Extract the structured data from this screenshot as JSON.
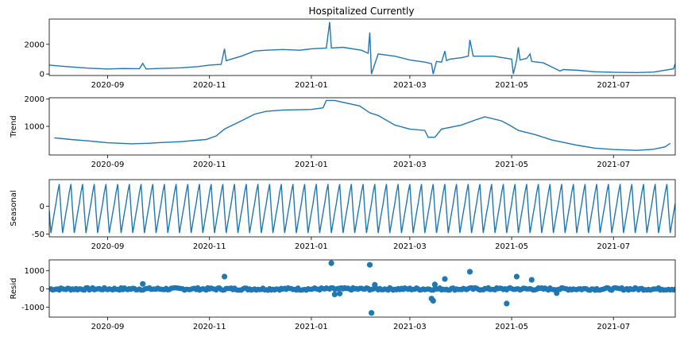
{
  "title": "Hospitalized Currently",
  "colors": {
    "line": "#1f77b4",
    "axis": "#000000",
    "zero_line": "#000000"
  },
  "x_tick_labels": [
    "2020-09",
    "2020-11",
    "2021-01",
    "2021-03",
    "2021-05",
    "2021-07"
  ],
  "chart_data": [
    {
      "type": "line",
      "panel": "observed",
      "ylabel": "",
      "xlim": [
        "2020-07-28",
        "2021-08-07"
      ],
      "ylim": [
        -100,
        3700
      ],
      "yticks": [
        0,
        2000
      ],
      "x": [
        "2020-07-28",
        "2020-08-01",
        "2020-08-10",
        "2020-08-20",
        "2020-09-01",
        "2020-09-10",
        "2020-09-20",
        "2020-09-22",
        "2020-09-24",
        "2020-10-01",
        "2020-10-15",
        "2020-10-25",
        "2020-11-01",
        "2020-11-08",
        "2020-11-10",
        "2020-11-11",
        "2020-11-20",
        "2020-11-28",
        "2020-12-05",
        "2020-12-15",
        "2020-12-25",
        "2021-01-01",
        "2021-01-10",
        "2021-01-12",
        "2021-01-13",
        "2021-01-20",
        "2021-01-31",
        "2021-02-04",
        "2021-02-05",
        "2021-02-06",
        "2021-02-10",
        "2021-02-20",
        "2021-03-01",
        "2021-03-10",
        "2021-03-14",
        "2021-03-15",
        "2021-03-17",
        "2021-03-20",
        "2021-03-22",
        "2021-03-23",
        "2021-03-25",
        "2021-04-01",
        "2021-04-05",
        "2021-04-06",
        "2021-04-08",
        "2021-04-20",
        "2021-05-01",
        "2021-05-02",
        "2021-05-04",
        "2021-05-05",
        "2021-05-06",
        "2021-05-10",
        "2021-05-12",
        "2021-05-13",
        "2021-05-20",
        "2021-05-30",
        "2021-06-01",
        "2021-06-10",
        "2021-06-20",
        "2021-07-01",
        "2021-07-15",
        "2021-07-25",
        "2021-08-06",
        "2021-08-07"
      ],
      "y": [
        600,
        560,
        480,
        400,
        340,
        370,
        360,
        720,
        340,
        370,
        420,
        500,
        600,
        650,
        1700,
        900,
        1200,
        1550,
        1600,
        1650,
        1600,
        1700,
        1750,
        3500,
        1750,
        1800,
        1600,
        1400,
        2800,
        0,
        1350,
        1200,
        950,
        800,
        700,
        0,
        850,
        800,
        1550,
        900,
        1000,
        1100,
        1200,
        2300,
        1200,
        1200,
        1000,
        0,
        950,
        1800,
        950,
        1050,
        1350,
        850,
        750,
        200,
        300,
        250,
        150,
        120,
        100,
        130,
        350,
        700
      ]
    },
    {
      "type": "line",
      "panel": "trend",
      "ylabel": "Trend",
      "xlim": [
        "2020-07-28",
        "2021-08-07"
      ],
      "ylim": [
        -50,
        2050
      ],
      "yticks": [
        1000,
        2000
      ],
      "x": [
        "2020-07-31",
        "2020-08-10",
        "2020-08-20",
        "2020-09-01",
        "2020-09-15",
        "2020-09-25",
        "2020-10-01",
        "2020-10-15",
        "2020-10-30",
        "2020-11-05",
        "2020-11-10",
        "2020-11-20",
        "2020-11-28",
        "2020-12-05",
        "2020-12-15",
        "2021-01-01",
        "2021-01-08",
        "2021-01-10",
        "2021-01-15",
        "2021-01-30",
        "2021-02-05",
        "2021-02-10",
        "2021-02-20",
        "2021-03-01",
        "2021-03-10",
        "2021-03-12",
        "2021-03-16",
        "2021-03-20",
        "2021-04-01",
        "2021-04-10",
        "2021-04-15",
        "2021-04-25",
        "2021-05-01",
        "2021-05-05",
        "2021-05-15",
        "2021-05-25",
        "2021-06-10",
        "2021-06-20",
        "2021-07-01",
        "2021-07-15",
        "2021-07-25",
        "2021-08-01",
        "2021-08-04"
      ],
      "y": [
        580,
        520,
        470,
        400,
        360,
        380,
        400,
        440,
        520,
        650,
        900,
        1200,
        1450,
        1550,
        1600,
        1620,
        1680,
        1950,
        1950,
        1750,
        1500,
        1400,
        1050,
        900,
        850,
        600,
        600,
        900,
        1050,
        1250,
        1350,
        1200,
        1000,
        850,
        700,
        500,
        300,
        200,
        150,
        120,
        160,
        250,
        380
      ]
    },
    {
      "type": "line",
      "panel": "seasonal",
      "ylabel": "Seasonal",
      "xlim": [
        "2020-07-28",
        "2021-08-07"
      ],
      "ylim": [
        -55,
        48
      ],
      "yticks": [
        -50,
        0
      ],
      "period_days": 7,
      "weekly_pattern": [
        -8,
        -48,
        -30,
        -12,
        5,
        25,
        40
      ],
      "start": "2020-07-28",
      "end": "2021-08-07"
    },
    {
      "type": "scatter",
      "panel": "resid",
      "ylabel": "Resid",
      "xlim": [
        "2020-07-28",
        "2021-08-07"
      ],
      "ylim": [
        -1550,
        1600
      ],
      "yticks": [
        -1000,
        0,
        1000
      ],
      "zero_line": true,
      "x": [
        "2020-09-22",
        "2020-11-10",
        "2021-01-13",
        "2021-01-15",
        "2021-01-18",
        "2021-02-05",
        "2021-02-06",
        "2021-02-08",
        "2021-03-14",
        "2021-03-15",
        "2021-03-16",
        "2021-03-22",
        "2021-04-06",
        "2021-04-28",
        "2021-05-04",
        "2021-05-13",
        "2021-05-28"
      ],
      "y": [
        280,
        680,
        1420,
        -300,
        -250,
        1330,
        -1320,
        230,
        -530,
        -650,
        250,
        550,
        950,
        -800,
        680,
        500,
        -230
      ],
      "noise_amplitude": 70,
      "noise_start": "2020-07-28",
      "noise_end": "2021-08-07"
    }
  ]
}
